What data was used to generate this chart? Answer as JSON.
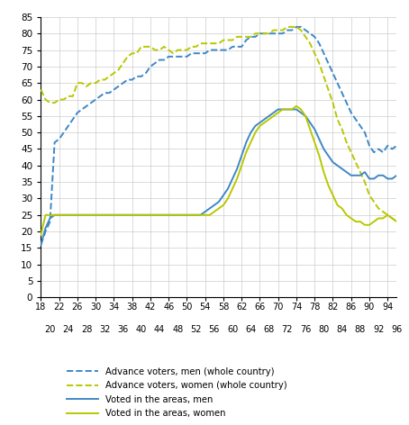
{
  "ages": [
    18,
    19,
    20,
    21,
    22,
    23,
    24,
    25,
    26,
    27,
    28,
    29,
    30,
    31,
    32,
    33,
    34,
    35,
    36,
    37,
    38,
    39,
    40,
    41,
    42,
    43,
    44,
    45,
    46,
    47,
    48,
    49,
    50,
    51,
    52,
    53,
    54,
    55,
    56,
    57,
    58,
    59,
    60,
    61,
    62,
    63,
    64,
    65,
    66,
    67,
    68,
    69,
    70,
    71,
    72,
    73,
    74,
    75,
    76,
    77,
    78,
    79,
    80,
    81,
    82,
    83,
    84,
    85,
    86,
    87,
    88,
    89,
    90,
    91,
    92,
    93,
    94,
    95,
    96
  ],
  "adv_men_whole": [
    16,
    20,
    23,
    47,
    48,
    50,
    52,
    54,
    56,
    57,
    58,
    59,
    60,
    61,
    62,
    62,
    63,
    64,
    65,
    66,
    66,
    67,
    67,
    68,
    70,
    71,
    72,
    72,
    73,
    73,
    73,
    73,
    73,
    74,
    74,
    74,
    74,
    75,
    75,
    75,
    75,
    75,
    76,
    76,
    76,
    78,
    79,
    79,
    80,
    80,
    80,
    80,
    80,
    80,
    81,
    81,
    82,
    82,
    81,
    80,
    79,
    77,
    74,
    71,
    68,
    65,
    62,
    59,
    56,
    54,
    52,
    50,
    46,
    44,
    45,
    44,
    46,
    45,
    46
  ],
  "adv_women_whole": [
    63,
    60,
    59,
    59,
    60,
    60,
    61,
    61,
    65,
    65,
    64,
    65,
    65,
    66,
    66,
    67,
    68,
    69,
    71,
    73,
    74,
    74,
    76,
    76,
    76,
    75,
    75,
    76,
    75,
    74,
    75,
    75,
    75,
    76,
    76,
    77,
    77,
    77,
    77,
    77,
    78,
    78,
    78,
    79,
    79,
    79,
    79,
    80,
    80,
    80,
    80,
    81,
    81,
    81,
    82,
    82,
    82,
    81,
    79,
    77,
    74,
    71,
    67,
    63,
    59,
    54,
    51,
    47,
    44,
    41,
    38,
    35,
    31,
    29,
    27,
    26,
    25,
    24,
    23
  ],
  "voted_areas_men": [
    16,
    21,
    24,
    25,
    25,
    25,
    25,
    25,
    25,
    25,
    25,
    25,
    25,
    25,
    25,
    25,
    25,
    25,
    25,
    25,
    25,
    25,
    25,
    25,
    25,
    25,
    25,
    25,
    25,
    25,
    25,
    25,
    25,
    25,
    25,
    25,
    26,
    27,
    28,
    29,
    31,
    33,
    36,
    39,
    43,
    47,
    50,
    52,
    53,
    54,
    55,
    56,
    57,
    57,
    57,
    57,
    57,
    56,
    55,
    53,
    51,
    48,
    45,
    43,
    41,
    40,
    39,
    38,
    37,
    37,
    37,
    38,
    36,
    36,
    37,
    37,
    36,
    36,
    37
  ],
  "voted_areas_women": [
    19,
    25,
    25,
    25,
    25,
    25,
    25,
    25,
    25,
    25,
    25,
    25,
    25,
    25,
    25,
    25,
    25,
    25,
    25,
    25,
    25,
    25,
    25,
    25,
    25,
    25,
    25,
    25,
    25,
    25,
    25,
    25,
    25,
    25,
    25,
    25,
    25,
    25,
    26,
    27,
    28,
    30,
    33,
    36,
    40,
    44,
    47,
    50,
    52,
    53,
    54,
    55,
    56,
    57,
    57,
    57,
    58,
    57,
    55,
    51,
    47,
    43,
    38,
    34,
    31,
    28,
    27,
    25,
    24,
    23,
    23,
    22,
    22,
    23,
    24,
    24,
    25,
    24,
    23
  ],
  "color_blue": "#3f88c5",
  "color_yellow": "#b8c800",
  "ylim": [
    0,
    85
  ],
  "yticks": [
    0,
    5,
    10,
    15,
    20,
    25,
    30,
    35,
    40,
    45,
    50,
    55,
    60,
    65,
    70,
    75,
    80,
    85
  ],
  "xticks_top": [
    18,
    22,
    26,
    30,
    34,
    38,
    42,
    46,
    50,
    54,
    58,
    62,
    66,
    70,
    74,
    78,
    82,
    86,
    90,
    94
  ],
  "xticks_bot": [
    20,
    24,
    28,
    32,
    36,
    40,
    44,
    48,
    52,
    56,
    60,
    64,
    68,
    72,
    76,
    80,
    84,
    88,
    92,
    96
  ],
  "legend_labels": [
    "Advance voters, men (whole country)",
    "Advance voters, women (whole country)",
    "Voted in the areas, men",
    "Voted in the areas, women"
  ]
}
